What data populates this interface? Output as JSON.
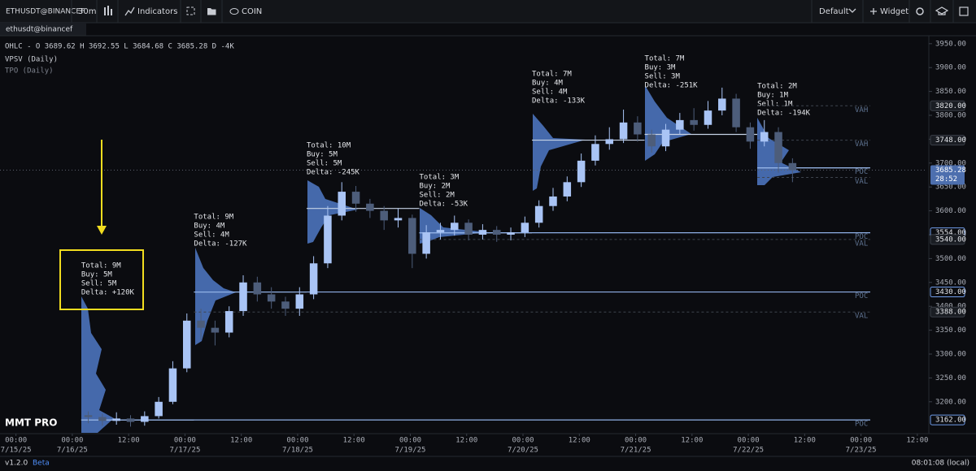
{
  "toolbar": {
    "symbol": "ETHUSDT@BINANCEF",
    "interval": "30m",
    "indicators": "Indicators",
    "compare": "COIN",
    "layout": "Default",
    "widget": "Widget"
  },
  "tab": "ethusdt@binancef",
  "footer": {
    "version": "v1.2.0",
    "channel": "Beta",
    "clock": "08:01:08 (local)"
  },
  "chart_data": {
    "type": "candlestick",
    "legend": "OHLC - O 3689.62 H 3692.55 L 3684.68 C 3685.28 D -4K",
    "indicators": [
      "VPSV (Daily)",
      "TPO (Daily)"
    ],
    "watermark": "MMT PRO",
    "up_color": "#a9c4f5",
    "down_color": "#4d5d7a",
    "xlim": [
      -15.4,
      182.1
    ],
    "ylim": [
      3135,
      3965
    ],
    "yticks": [
      {
        "value": 3200,
        "label": "3200.00"
      },
      {
        "value": 3250,
        "label": "3250.00"
      },
      {
        "value": 3300,
        "label": "3300.00"
      },
      {
        "value": 3350,
        "label": "3350.00"
      },
      {
        "value": 3400,
        "label": "3400.00"
      },
      {
        "value": 3450,
        "label": "3450.00"
      },
      {
        "value": 3500,
        "label": "3500.00"
      },
      {
        "value": 3550,
        "label": "3550.00"
      },
      {
        "value": 3600,
        "label": "3600.00"
      },
      {
        "value": 3650,
        "label": "3650.00"
      },
      {
        "value": 3700,
        "label": "3700.00"
      },
      {
        "value": 3750,
        "label": "3750.00"
      },
      {
        "value": 3800,
        "label": "3800.00"
      },
      {
        "value": 3850,
        "label": "3850.00"
      },
      {
        "value": 3900,
        "label": "3900.00"
      },
      {
        "value": 3950,
        "label": "3950.00"
      }
    ],
    "xticks": [
      {
        "value": -12,
        "label": "00:00"
      },
      {
        "value": 0,
        "label": "00:00"
      },
      {
        "value": 12,
        "label": "12:00"
      },
      {
        "value": 24,
        "label": "00:00"
      },
      {
        "value": 36,
        "label": "12:00"
      },
      {
        "value": 48,
        "label": "00:00"
      },
      {
        "value": 60,
        "label": "12:00"
      },
      {
        "value": 72,
        "label": "00:00"
      },
      {
        "value": 84,
        "label": "12:00"
      },
      {
        "value": 96,
        "label": "00:00"
      },
      {
        "value": 108,
        "label": "12:00"
      },
      {
        "value": 120,
        "label": "00:00"
      },
      {
        "value": 132,
        "label": "12:00"
      },
      {
        "value": 144,
        "label": "00:00"
      },
      {
        "value": 156,
        "label": "12:00"
      },
      {
        "value": 168,
        "label": "00:00"
      },
      {
        "value": 180,
        "label": "12:00"
      }
    ],
    "xdates": [
      {
        "value": -12,
        "label": "7/15/25"
      },
      {
        "value": 0,
        "label": "7/16/25"
      },
      {
        "value": 24,
        "label": "7/17/25"
      },
      {
        "value": 48,
        "label": "7/18/25"
      },
      {
        "value": 72,
        "label": "7/19/25"
      },
      {
        "value": 96,
        "label": "7/20/25"
      },
      {
        "value": 120,
        "label": "7/21/25"
      },
      {
        "value": 144,
        "label": "7/22/25"
      },
      {
        "value": 168,
        "label": "7/23/25"
      }
    ],
    "candles": {
      "x": [
        0,
        3,
        6,
        9,
        12,
        15,
        18,
        21,
        24,
        27,
        30,
        33,
        36,
        39,
        42,
        45,
        48,
        51,
        54,
        57,
        60,
        63,
        66,
        69,
        72,
        75,
        78,
        81,
        84,
        87,
        90,
        93,
        96,
        99,
        102,
        105,
        108,
        111,
        114,
        117,
        120,
        123,
        126,
        129,
        132,
        135,
        138,
        141,
        144,
        147,
        150
      ],
      "open": [
        3172,
        3168,
        3160,
        3165,
        3158,
        3170,
        3200,
        3270,
        3370,
        3355,
        3345,
        3390,
        3450,
        3425,
        3410,
        3395,
        3425,
        3490,
        3590,
        3640,
        3615,
        3600,
        3580,
        3585,
        3510,
        3555,
        3560,
        3575,
        3550,
        3560,
        3550,
        3555,
        3575,
        3610,
        3630,
        3660,
        3705,
        3740,
        3750,
        3785,
        3760,
        3735,
        3770,
        3790,
        3780,
        3810,
        3835,
        3775,
        3745,
        3765,
        3700
      ],
      "high": [
        3180,
        3175,
        3178,
        3172,
        3180,
        3210,
        3285,
        3385,
        3395,
        3370,
        3400,
        3465,
        3462,
        3440,
        3420,
        3440,
        3505,
        3610,
        3660,
        3652,
        3625,
        3610,
        3605,
        3592,
        3570,
        3575,
        3590,
        3582,
        3572,
        3568,
        3565,
        3588,
        3622,
        3648,
        3672,
        3720,
        3758,
        3775,
        3812,
        3798,
        3770,
        3782,
        3805,
        3815,
        3830,
        3858,
        3845,
        3785,
        3790,
        3775,
        3710
      ],
      "low": [
        3155,
        3150,
        3152,
        3148,
        3150,
        3165,
        3195,
        3262,
        3330,
        3318,
        3335,
        3380,
        3410,
        3395,
        3380,
        3380,
        3415,
        3480,
        3580,
        3598,
        3585,
        3560,
        3565,
        3480,
        3500,
        3540,
        3548,
        3538,
        3540,
        3535,
        3538,
        3545,
        3565,
        3600,
        3620,
        3650,
        3695,
        3728,
        3742,
        3745,
        3722,
        3725,
        3760,
        3768,
        3772,
        3800,
        3765,
        3730,
        3735,
        3680,
        3660
      ],
      "close": [
        3168,
        3160,
        3165,
        3158,
        3170,
        3200,
        3270,
        3370,
        3355,
        3345,
        3390,
        3450,
        3425,
        3410,
        3395,
        3425,
        3490,
        3590,
        3640,
        3615,
        3600,
        3580,
        3585,
        3510,
        3555,
        3560,
        3575,
        3550,
        3560,
        3550,
        3555,
        3575,
        3610,
        3630,
        3660,
        3705,
        3740,
        3750,
        3785,
        3760,
        3735,
        3770,
        3790,
        3780,
        3810,
        3835,
        3775,
        3745,
        3765,
        3700,
        3685.28
      ]
    },
    "sessions": [
      {
        "start": 0,
        "total": "Total: 9M",
        "buy": "Buy: 5M",
        "sell": "Sell: 5M",
        "delta": "Delta: +120K",
        "poc": 3162
      },
      {
        "start": 24,
        "total": "Total: 9M",
        "buy": "Buy: 4M",
        "sell": "Sell: 4M",
        "delta": "Delta: -127K",
        "poc": 3430
      },
      {
        "start": 48,
        "total": "Total: 10M",
        "buy": "Buy: 5M",
        "sell": "Sell: 5M",
        "delta": "Delta: -245K",
        "poc": 3605
      },
      {
        "start": 72,
        "total": "Total: 3M",
        "buy": "Buy: 2M",
        "sell": "Sell: 2M",
        "delta": "Delta: -53K",
        "poc": 3554
      },
      {
        "start": 96,
        "total": "Total: 7M",
        "buy": "Buy: 4M",
        "sell": "Sell: 4M",
        "delta": "Delta: -133K",
        "poc": 3748
      },
      {
        "start": 120,
        "total": "Total: 7M",
        "buy": "Buy: 3M",
        "sell": "Sell: 3M",
        "delta": "Delta: -251K",
        "poc": 3760
      },
      {
        "start": 144,
        "total": "Total: 2M",
        "buy": "Buy: 1M",
        "sell": "Sell: 1M",
        "delta": "Delta: -194K",
        "poc": 3690
      }
    ],
    "levels": [
      {
        "value": 3820,
        "tag": "VAH",
        "badge": "3820.00",
        "from": 6
      },
      {
        "value": 3748,
        "tag": "VAH",
        "badge": "3748.00",
        "from": 6
      },
      {
        "value": 3690,
        "tag": "POC",
        "from": 6
      },
      {
        "value": 3670,
        "tag": "VAL",
        "from": 6
      },
      {
        "value": 3554,
        "tag": "POC",
        "badge": "3554.00",
        "from": 3
      },
      {
        "value": 3540,
        "tag": "VAL",
        "badge": "3540.00",
        "from": 3
      },
      {
        "value": 3430,
        "tag": "POC",
        "badge": "3430.00",
        "from": 1
      },
      {
        "value": 3388,
        "tag": "VAL",
        "badge": "3388.00",
        "from": 1
      },
      {
        "value": 3162,
        "tag": "POC",
        "badge": "3162.00",
        "from": 0
      }
    ],
    "last": {
      "value": 3685.28,
      "label": "3685.28",
      "countdown": "28:52"
    }
  }
}
